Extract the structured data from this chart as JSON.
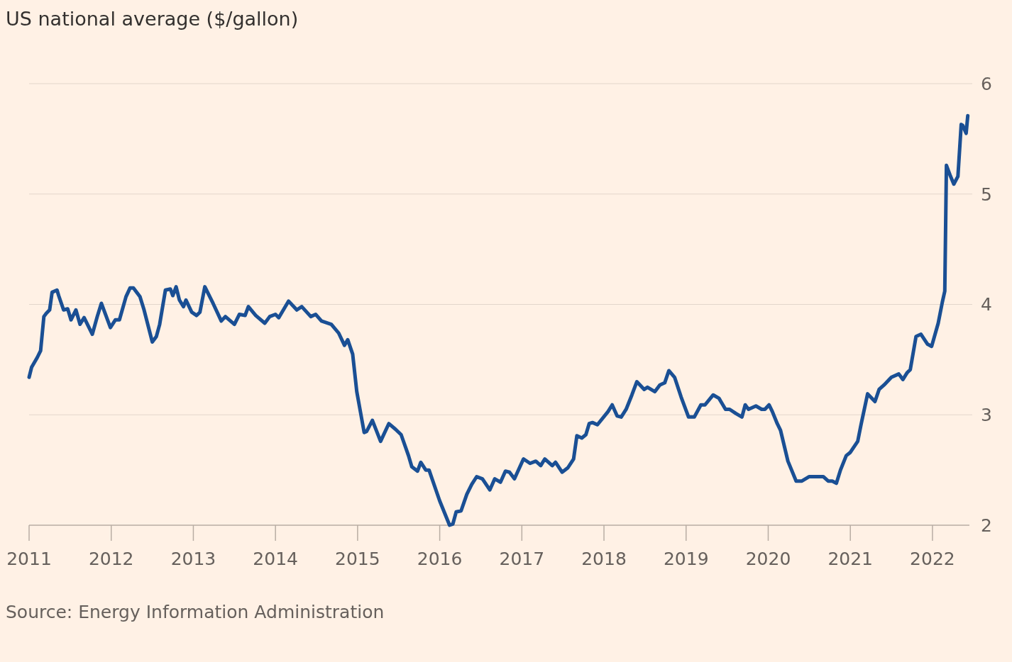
{
  "chart_data": {
    "type": "line",
    "title": "US national average ($/gallon)",
    "annotations": [
      "Source: Energy Information Administration"
    ],
    "x": [
      2011.0,
      2011.03,
      2011.1,
      2011.14,
      2011.18,
      2011.21,
      2011.25,
      2011.28,
      2011.34,
      2011.36,
      2011.42,
      2011.47,
      2011.51,
      2011.57,
      2011.62,
      2011.67,
      2011.77,
      2011.83,
      2011.88,
      2011.99,
      2012.05,
      2012.1,
      2012.18,
      2012.23,
      2012.27,
      2012.35,
      2012.4,
      2012.5,
      2012.55,
      2012.59,
      2012.66,
      2012.72,
      2012.75,
      2012.79,
      2012.83,
      2012.88,
      2012.91,
      2012.98,
      2013.04,
      2013.08,
      2013.14,
      2013.24,
      2013.34,
      2013.39,
      2013.5,
      2013.56,
      2013.63,
      2013.67,
      2013.76,
      2013.87,
      2013.93,
      2014.0,
      2014.04,
      2014.16,
      2014.26,
      2014.32,
      2014.43,
      2014.49,
      2014.56,
      2014.68,
      2014.77,
      2014.84,
      2014.88,
      2014.94,
      2014.99,
      2015.08,
      2015.11,
      2015.18,
      2015.28,
      2015.38,
      2015.46,
      2015.53,
      2015.62,
      2015.66,
      2015.73,
      2015.77,
      2015.83,
      2015.87,
      2016.0,
      2016.12,
      2016.16,
      2016.2,
      2016.26,
      2016.33,
      2016.39,
      2016.45,
      2016.52,
      2016.61,
      2016.67,
      2016.74,
      2016.8,
      2016.85,
      2016.91,
      2017.02,
      2017.1,
      2017.17,
      2017.23,
      2017.28,
      2017.37,
      2017.41,
      2017.49,
      2017.56,
      2017.63,
      2017.67,
      2017.73,
      2017.78,
      2017.82,
      2017.86,
      2017.92,
      2018.05,
      2018.1,
      2018.16,
      2018.21,
      2018.27,
      2018.34,
      2018.4,
      2018.49,
      2018.53,
      2018.62,
      2018.68,
      2018.74,
      2018.79,
      2018.86,
      2018.94,
      2019.03,
      2019.1,
      2019.18,
      2019.23,
      2019.33,
      2019.4,
      2019.48,
      2019.53,
      2019.61,
      2019.68,
      2019.72,
      2019.76,
      2019.85,
      2019.92,
      2019.96,
      2020.01,
      2020.05,
      2020.11,
      2020.15,
      2020.24,
      2020.34,
      2020.41,
      2020.5,
      2020.56,
      2020.6,
      2020.67,
      2020.73,
      2020.78,
      2020.83,
      2020.88,
      2020.95,
      2021.0,
      2021.09,
      2021.13,
      2021.21,
      2021.3,
      2021.35,
      2021.41,
      2021.5,
      2021.59,
      2021.64,
      2021.69,
      2021.73,
      2021.8,
      2021.86,
      2021.94,
      2021.99,
      2022.07,
      2022.12,
      2022.15,
      2022.17,
      2022.22,
      2022.26,
      2022.31,
      2022.35,
      2022.37,
      2022.41,
      2022.43
    ],
    "series": [
      {
        "color": "#1a4f94",
        "values": [
          3.34,
          3.43,
          3.52,
          3.58,
          3.89,
          3.92,
          3.95,
          4.11,
          4.13,
          4.08,
          3.95,
          3.96,
          3.86,
          3.95,
          3.82,
          3.88,
          3.73,
          3.89,
          4.01,
          3.79,
          3.86,
          3.86,
          4.07,
          4.15,
          4.15,
          4.07,
          3.95,
          3.66,
          3.71,
          3.82,
          4.13,
          4.14,
          4.08,
          4.16,
          4.04,
          3.98,
          4.04,
          3.93,
          3.9,
          3.93,
          4.16,
          4.01,
          3.85,
          3.89,
          3.82,
          3.91,
          3.9,
          3.98,
          3.9,
          3.83,
          3.89,
          3.91,
          3.88,
          4.03,
          3.95,
          3.98,
          3.89,
          3.91,
          3.85,
          3.82,
          3.74,
          3.63,
          3.68,
          3.55,
          3.21,
          2.84,
          2.85,
          2.95,
          2.76,
          2.92,
          2.87,
          2.82,
          2.63,
          2.53,
          2.49,
          2.57,
          2.5,
          2.5,
          2.22,
          2.0,
          2.01,
          2.12,
          2.13,
          2.28,
          2.37,
          2.44,
          2.42,
          2.32,
          2.42,
          2.39,
          2.49,
          2.48,
          2.42,
          2.6,
          2.56,
          2.58,
          2.54,
          2.6,
          2.54,
          2.57,
          2.48,
          2.52,
          2.6,
          2.81,
          2.79,
          2.82,
          2.92,
          2.93,
          2.91,
          3.03,
          3.09,
          2.99,
          2.98,
          3.05,
          3.18,
          3.3,
          3.23,
          3.25,
          3.21,
          3.27,
          3.29,
          3.4,
          3.34,
          3.16,
          2.98,
          2.98,
          3.09,
          3.09,
          3.18,
          3.15,
          3.05,
          3.05,
          3.01,
          2.98,
          3.09,
          3.05,
          3.08,
          3.05,
          3.05,
          3.09,
          3.03,
          2.92,
          2.86,
          2.58,
          2.4,
          2.4,
          2.44,
          2.44,
          2.44,
          2.44,
          2.4,
          2.4,
          2.38,
          2.5,
          2.63,
          2.66,
          2.76,
          2.91,
          3.19,
          3.12,
          3.23,
          3.27,
          3.34,
          3.37,
          3.32,
          3.38,
          3.41,
          3.71,
          3.73,
          3.64,
          3.62,
          3.83,
          4.02,
          4.12,
          5.26,
          5.16,
          5.09,
          5.16,
          5.63,
          5.62,
          5.55,
          5.71
        ]
      }
    ],
    "xlim": [
      2011,
      2022.45
    ],
    "xticks": [
      2011,
      2012,
      2013,
      2014,
      2015,
      2016,
      2017,
      2018,
      2019,
      2020,
      2021,
      2022
    ],
    "ylim": [
      2,
      6
    ],
    "yticks": [
      2,
      3,
      4,
      5,
      6
    ],
    "grid": "y",
    "line_style": "solid",
    "marker": "none"
  }
}
